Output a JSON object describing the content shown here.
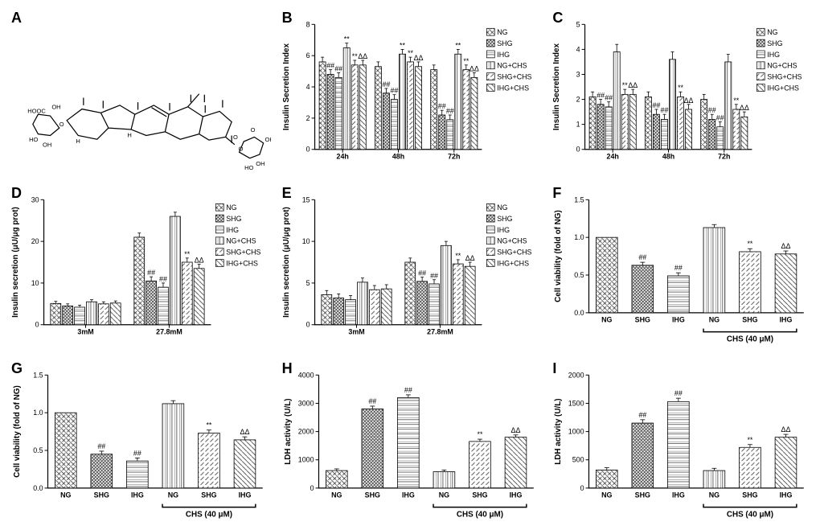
{
  "panels": [
    "A",
    "B",
    "C",
    "D",
    "E",
    "F",
    "G",
    "H",
    "I"
  ],
  "patterns": {
    "NG": {
      "type": "crosshatch",
      "color": "#404040"
    },
    "SHG": {
      "type": "dense-cross",
      "color": "#404040"
    },
    "IHG": {
      "type": "horizontal",
      "color": "#404040"
    },
    "NG+CHS": {
      "type": "vertical",
      "color": "#404040"
    },
    "SHG+CHS": {
      "type": "diag-left",
      "color": "#404040"
    },
    "IHG+CHS": {
      "type": "diag-right",
      "color": "#404040"
    }
  },
  "legend_order": [
    "NG",
    "SHG",
    "IHG",
    "NG+CHS",
    "SHG+CHS",
    "IHG+CHS"
  ],
  "B": {
    "type": "bar",
    "ylabel": "Insulin Secretion Index",
    "ylim": [
      0,
      8
    ],
    "ytick_step": 2,
    "groups": [
      "24h",
      "48h",
      "72h"
    ],
    "series": [
      "NG",
      "SHG",
      "IHG",
      "NG+CHS",
      "SHG+CHS",
      "IHG+CHS"
    ],
    "values": {
      "24h": [
        5.6,
        4.8,
        4.6,
        6.5,
        5.4,
        5.4
      ],
      "48h": [
        5.3,
        3.6,
        3.2,
        6.1,
        5.6,
        5.3
      ],
      "72h": [
        5.1,
        2.2,
        1.9,
        6.1,
        5.1,
        4.6
      ]
    },
    "errors": {
      "24h": [
        0.3,
        0.3,
        0.3,
        0.3,
        0.3,
        0.3
      ],
      "48h": [
        0.3,
        0.3,
        0.3,
        0.3,
        0.3,
        0.3
      ],
      "72h": [
        0.3,
        0.3,
        0.3,
        0.3,
        0.3,
        0.3
      ]
    },
    "sigs": {
      "24h": [
        "",
        "##",
        "##",
        "**",
        "**",
        "ΔΔ"
      ],
      "48h": [
        "",
        "##",
        "##",
        "**",
        "**",
        "ΔΔ"
      ],
      "72h": [
        "",
        "##",
        "##",
        "**",
        "**",
        "ΔΔ"
      ]
    }
  },
  "C": {
    "type": "bar",
    "ylabel": "Insulin Secretion Index",
    "ylim": [
      0,
      5
    ],
    "ytick_step": 1,
    "groups": [
      "24h",
      "48h",
      "72h"
    ],
    "series": [
      "NG",
      "SHG",
      "IHG",
      "NG+CHS",
      "SHG+CHS",
      "IHG+CHS"
    ],
    "values": {
      "24h": [
        2.1,
        1.8,
        1.7,
        3.9,
        2.2,
        2.2
      ],
      "48h": [
        2.1,
        1.4,
        1.2,
        3.6,
        2.1,
        1.6
      ],
      "72h": [
        2.0,
        1.2,
        0.9,
        3.5,
        1.6,
        1.3
      ]
    },
    "errors": {
      "24h": [
        0.2,
        0.2,
        0.2,
        0.3,
        0.2,
        0.2
      ],
      "48h": [
        0.2,
        0.2,
        0.2,
        0.3,
        0.2,
        0.2
      ],
      "72h": [
        0.2,
        0.2,
        0.2,
        0.3,
        0.2,
        0.2
      ]
    },
    "sigs": {
      "24h": [
        "",
        "##",
        "##",
        "",
        "**",
        "ΔΔ"
      ],
      "48h": [
        "",
        "##",
        "##",
        "",
        "**",
        "ΔΔ"
      ],
      "72h": [
        "",
        "##",
        "##",
        "",
        "**",
        "ΔΔ"
      ]
    }
  },
  "D": {
    "type": "bar",
    "ylabel": "Insulin secretion (μU/μg prot)",
    "ylim": [
      0,
      30
    ],
    "ytick_step": 10,
    "groups": [
      "3mM",
      "27.8mM"
    ],
    "series": [
      "NG",
      "SHG",
      "IHG",
      "NG+CHS",
      "SHG+CHS",
      "IHG+CHS"
    ],
    "values": {
      "3mM": [
        5.1,
        4.5,
        4.2,
        5.5,
        5.0,
        5.2
      ],
      "27.8mM": [
        21,
        10.5,
        9,
        26,
        15,
        13.5
      ]
    },
    "errors": {
      "3mM": [
        0.5,
        0.5,
        0.5,
        0.5,
        0.5,
        0.5
      ],
      "27.8mM": [
        1,
        1,
        1,
        1,
        1,
        1
      ]
    },
    "sigs": {
      "3mM": [
        "",
        "",
        "",
        "",
        "",
        ""
      ],
      "27.8mM": [
        "",
        "##",
        "##",
        "",
        "**",
        "ΔΔ"
      ]
    }
  },
  "E": {
    "type": "bar",
    "ylabel": "Insulin secretion (μU/μg prot)",
    "ylim": [
      0,
      15
    ],
    "ytick_step": 5,
    "groups": [
      "3mM",
      "27.8mM"
    ],
    "series": [
      "NG",
      "SHG",
      "IHG",
      "NG+CHS",
      "SHG+CHS",
      "IHG+CHS"
    ],
    "values": {
      "3mM": [
        3.6,
        3.2,
        3.0,
        5.1,
        4.2,
        4.3
      ],
      "27.8mM": [
        7.5,
        5.2,
        4.9,
        9.5,
        7.3,
        7.0
      ]
    },
    "errors": {
      "3mM": [
        0.5,
        0.5,
        0.5,
        0.5,
        0.5,
        0.5
      ],
      "27.8mM": [
        0.5,
        0.5,
        0.5,
        0.5,
        0.5,
        0.5
      ]
    },
    "sigs": {
      "3mM": [
        "",
        "",
        "",
        "",
        "",
        ""
      ],
      "27.8mM": [
        "",
        "##",
        "##",
        "",
        "**",
        "ΔΔ"
      ]
    }
  },
  "F": {
    "type": "bar",
    "ylabel": "Cell viability (fold of NG)",
    "ylim": [
      0,
      1.5
    ],
    "ytick_step": 0.5,
    "categories": [
      "NG",
      "SHG",
      "IHG",
      "NG",
      "SHG",
      "IHG"
    ],
    "patternmap": [
      "NG",
      "SHG",
      "IHG",
      "NG+CHS",
      "SHG+CHS",
      "IHG+CHS"
    ],
    "values": [
      1.0,
      0.63,
      0.49,
      1.13,
      0.81,
      0.78
    ],
    "errors": [
      0,
      0.04,
      0.04,
      0.04,
      0.04,
      0.04
    ],
    "sigs": [
      "",
      "##",
      "##",
      "",
      "**",
      "ΔΔ"
    ],
    "group_label": "CHS (40 μM)",
    "group_range": [
      3,
      5
    ]
  },
  "G": {
    "type": "bar",
    "ylabel": "Cell viability (fold of NG)",
    "ylim": [
      0,
      1.5
    ],
    "ytick_step": 0.5,
    "categories": [
      "NG",
      "SHG",
      "IHG",
      "NG",
      "SHG",
      "IHG"
    ],
    "patternmap": [
      "NG",
      "SHG",
      "IHG",
      "NG+CHS",
      "SHG+CHS",
      "IHG+CHS"
    ],
    "values": [
      1.0,
      0.45,
      0.36,
      1.12,
      0.73,
      0.64
    ],
    "errors": [
      0,
      0.04,
      0.04,
      0.04,
      0.04,
      0.04
    ],
    "sigs": [
      "",
      "##",
      "##",
      "",
      "**",
      "ΔΔ"
    ],
    "group_label": "CHS (40 μM)",
    "group_range": [
      3,
      5
    ]
  },
  "H": {
    "type": "bar",
    "ylabel": "LDH activity (U/L)",
    "ylim": [
      0,
      4000
    ],
    "ytick_step": 1000,
    "categories": [
      "NG",
      "SHG",
      "IHG",
      "NG",
      "SHG",
      "IHG"
    ],
    "patternmap": [
      "NG",
      "SHG",
      "IHG",
      "NG+CHS",
      "SHG+CHS",
      "IHG+CHS"
    ],
    "values": [
      620,
      2800,
      3200,
      580,
      1650,
      1800
    ],
    "errors": [
      60,
      100,
      100,
      60,
      80,
      80
    ],
    "sigs": [
      "",
      "##",
      "##",
      "",
      "**",
      "ΔΔ"
    ],
    "group_label": "CHS (40 μM)",
    "group_range": [
      3,
      5
    ]
  },
  "I": {
    "type": "bar",
    "ylabel": "LDH activity (U/L)",
    "ylim": [
      0,
      2000
    ],
    "ytick_step": 500,
    "categories": [
      "NG",
      "SHG",
      "IHG",
      "NG",
      "SHG",
      "IHG"
    ],
    "patternmap": [
      "NG",
      "SHG",
      "IHG",
      "NG+CHS",
      "SHG+CHS",
      "IHG+CHS"
    ],
    "values": [
      320,
      1150,
      1530,
      310,
      720,
      900
    ],
    "errors": [
      40,
      60,
      60,
      40,
      50,
      50
    ],
    "sigs": [
      "",
      "##",
      "##",
      "",
      "**",
      "ΔΔ"
    ],
    "group_label": "CHS (40 μM)",
    "group_range": [
      3,
      5
    ]
  },
  "colors": {
    "line": "#000000",
    "bg": "#ffffff"
  }
}
